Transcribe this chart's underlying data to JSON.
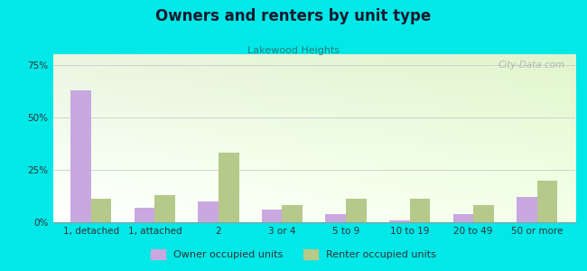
{
  "title": "Owners and renters by unit type",
  "subtitle": "Lakewood Heights",
  "categories": [
    "1, detached",
    "1, attached",
    "2",
    "3 or 4",
    "5 to 9",
    "10 to 19",
    "20 to 49",
    "50 or more"
  ],
  "owner_values": [
    63,
    7,
    10,
    6,
    4,
    1,
    4,
    12
  ],
  "renter_values": [
    11,
    13,
    33,
    8,
    11,
    11,
    8,
    20
  ],
  "owner_color": "#c9a8e0",
  "renter_color": "#b5c98a",
  "background_color": "#00e8e8",
  "ylim": [
    0,
    80
  ],
  "yticks": [
    0,
    25,
    50,
    75
  ],
  "ytick_labels": [
    "0%",
    "25%",
    "50%",
    "75%"
  ],
  "bar_width": 0.32,
  "legend_owner": "Owner occupied units",
  "legend_renter": "Renter occupied units",
  "watermark": "City-Data.com",
  "title_color": "#1a1a2e",
  "subtitle_color": "#2a7a7a",
  "tick_label_color": "#333333"
}
